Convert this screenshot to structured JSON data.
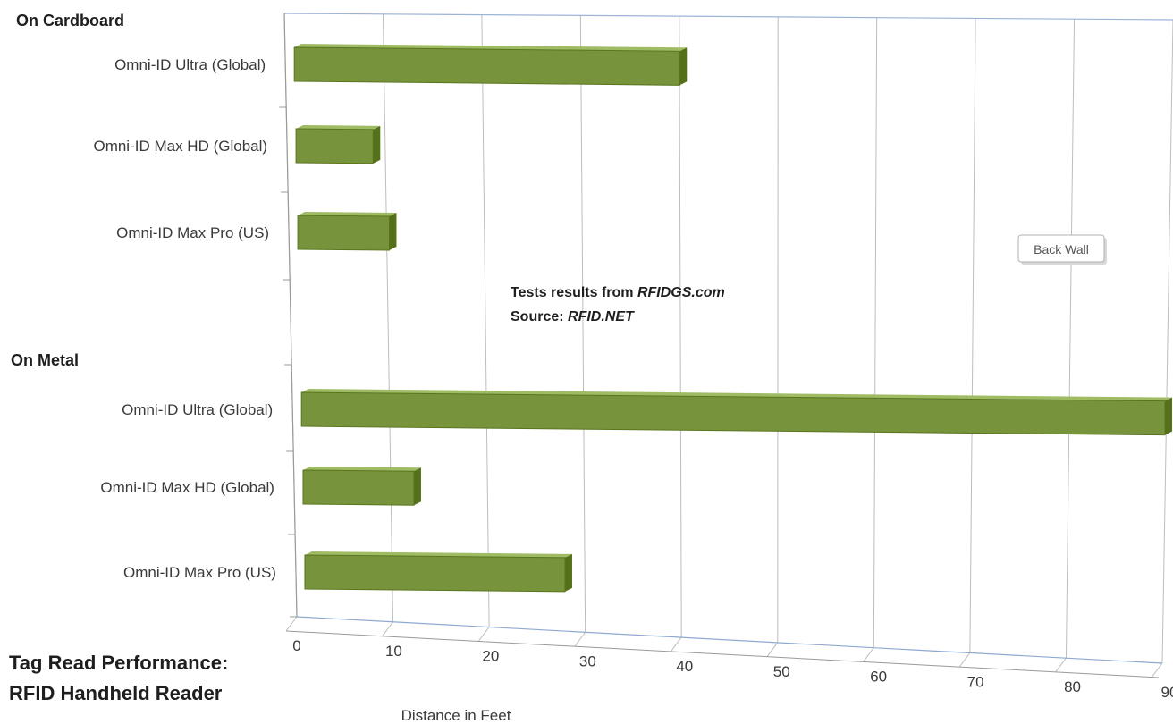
{
  "chart_data": {
    "type": "bar",
    "orientation": "horizontal",
    "title": [
      "Tag Read Performance:",
      "RFID Handheld Reader"
    ],
    "xlabel": "Distance in Feet",
    "ylabel": "",
    "xlim": [
      0,
      90
    ],
    "x_ticks": [
      "0",
      "10",
      "20",
      "30",
      "40",
      "50",
      "60",
      "70",
      "80",
      "90"
    ],
    "grid": true,
    "groups": [
      {
        "name": "On Cardboard",
        "items": [
          {
            "label": "Omni-ID Ultra (Global)",
            "value": 40
          },
          {
            "label": "Omni-ID Max HD (Global)",
            "value": 8
          },
          {
            "label": "Omni-ID Max Pro (US)",
            "value": 9.5
          }
        ]
      },
      {
        "name": "On Metal",
        "items": [
          {
            "label": "Omni-ID Ultra (Global)",
            "value": 90
          },
          {
            "label": "Omni-ID Max HD (Global)",
            "value": 11.5
          },
          {
            "label": "Omni-ID Max Pro (US)",
            "value": 27
          }
        ]
      }
    ],
    "annotations": {
      "line1_prefix": "Tests results from ",
      "line1_em": "RFIDGS.com",
      "line2_prefix": "Source: ",
      "line2_em": "RFID.NET"
    },
    "tooltip": "Back Wall",
    "bar_color": "#77933c"
  }
}
